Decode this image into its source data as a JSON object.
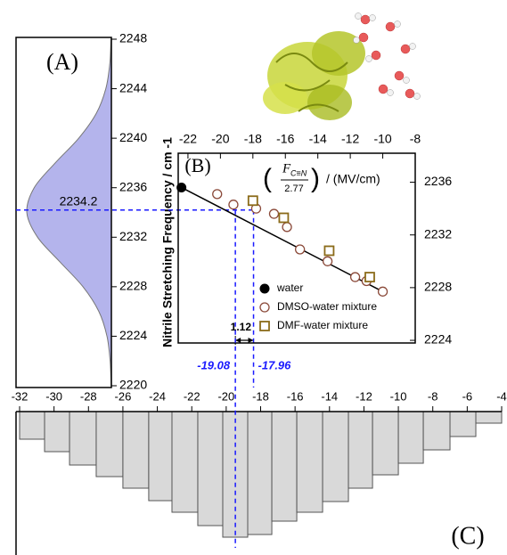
{
  "chart_data": [
    {
      "type": "area",
      "label": "(A)",
      "x": [
        2220,
        2222,
        2224,
        2226,
        2228,
        2230,
        2232,
        2234,
        2236,
        2238,
        2240,
        2242,
        2244,
        2246,
        2248
      ],
      "values": [
        0.003,
        0.015,
        0.052,
        0.148,
        0.336,
        0.607,
        0.872,
        0.999,
        0.912,
        0.664,
        0.386,
        0.179,
        0.066,
        0.019,
        0.005
      ],
      "color": "#b4b4ec",
      "ylim": [
        2220,
        2248
      ],
      "yticks": [
        2220,
        2224,
        2228,
        2232,
        2236,
        2240,
        2244,
        2248
      ],
      "annotation": 2234.2
    },
    {
      "type": "scatter",
      "label": "(B)",
      "y_label": "Nitrile Stretching Frequency / cm -1",
      "x_label": {
        "open": "(",
        "numerator": "F",
        "subscript": "C≡N",
        "denominator": "2.77",
        "close": ")",
        "unit": "/ (MV/cm)"
      },
      "xlim": [
        -22.6,
        -8
      ],
      "xticks": [
        -22,
        -20,
        -18,
        -16,
        -14,
        -12,
        -10,
        -8
      ],
      "ylim": [
        2223.8,
        2238.2
      ],
      "yticks": [
        2224,
        2228,
        2232,
        2236
      ],
      "legend": "lower-center",
      "series": [
        {
          "name": "water",
          "color": "#000000",
          "marker": "filled-circle",
          "x": [
            -22.4
          ],
          "values": [
            2235.6
          ]
        },
        {
          "name": "DMSO-water mixture",
          "color": "#8b4a3a",
          "marker": "circle",
          "x": [
            -20.2,
            -19.2,
            -17.8,
            -16.7,
            -15.9,
            -15.1,
            -13.4,
            -11.7,
            -11.0,
            -10.0
          ],
          "values": [
            2235.1,
            2234.3,
            2234.0,
            2233.6,
            2232.6,
            2230.9,
            2230.0,
            2228.8,
            2228.5,
            2227.7
          ]
        },
        {
          "name": "DMF-water mixture",
          "color": "#8b6b1a",
          "marker": "square",
          "x": [
            -18.0,
            -16.1,
            -13.3,
            -10.8
          ],
          "values": [
            2234.6,
            2233.3,
            2230.8,
            2228.8
          ]
        }
      ],
      "fit": {
        "color": "#000000",
        "x": [
          -22.4,
          -10.0
        ],
        "values": [
          2235.6,
          2227.7
        ]
      },
      "difference": 1.12,
      "markers": [
        -19.08,
        -17.96
      ],
      "marker_color": "#1a1aff"
    },
    {
      "type": "histogram",
      "label": "(C)",
      "inverted": true,
      "bins": [
        -32,
        -30.55,
        -29.1,
        -27.55,
        -26.0,
        -24.5,
        -23.15,
        -21.65,
        -20.2,
        -18.75,
        -17.35,
        -15.9,
        -14.4,
        -12.9,
        -11.5,
        -10.0,
        -8.55,
        -7.0,
        -5.5,
        -4.0
      ],
      "values": [
        31,
        45,
        60,
        73,
        86,
        100,
        113,
        128,
        141,
        138,
        123,
        113,
        101,
        86,
        71,
        58,
        43,
        28,
        13
      ],
      "color": "#d9d9d9",
      "xlim": [
        -32,
        -4
      ],
      "xticks": [
        -32,
        -30,
        -28,
        -26,
        -24,
        -22,
        -20,
        -18,
        -16,
        -14,
        -12,
        -10,
        -8,
        -6,
        -4
      ]
    }
  ]
}
